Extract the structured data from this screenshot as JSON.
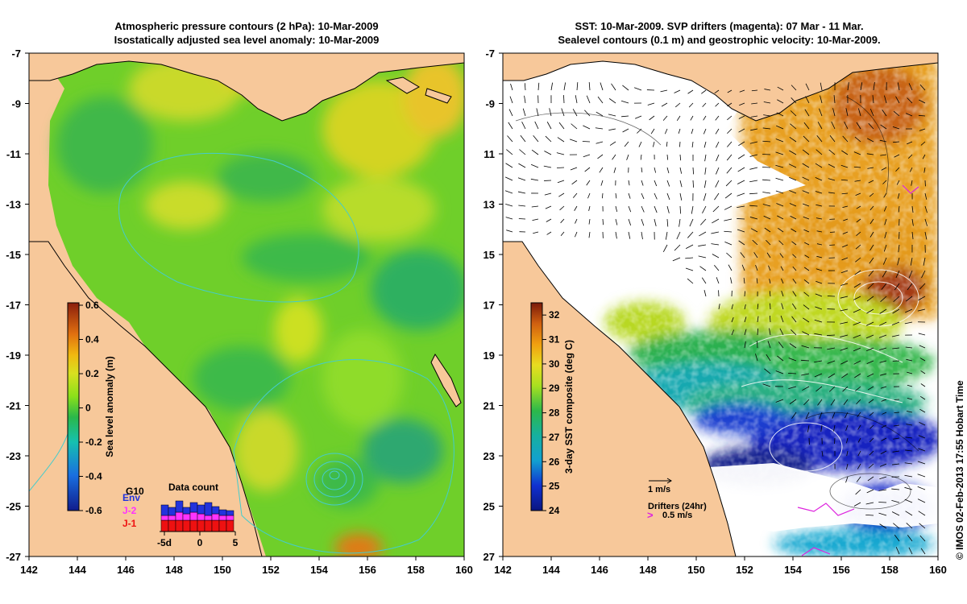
{
  "left_panel": {
    "title_line1": "Atmospheric pressure contours (2 hPa): 10-Mar-2009",
    "title_line2": "Isostatically adjusted sea level anomaly: 10-Mar-2009",
    "x_ticks": [
      "142",
      "144",
      "146",
      "148",
      "150",
      "152",
      "154",
      "156",
      "158",
      "160"
    ],
    "y_ticks": [
      "-7",
      "-9",
      "-11",
      "-13",
      "-15",
      "-17",
      "-19",
      "-21",
      "-23",
      "-25",
      "-27"
    ],
    "colorbar": {
      "label": "Sea level anomaly (m)",
      "ticks": [
        "0.6",
        "0.4",
        "0.2",
        "0",
        "-0.2",
        "-0.4",
        "-0.6"
      ],
      "range": [
        -0.6,
        0.6
      ]
    },
    "inset": {
      "title": "Data count",
      "missions": [
        "Env",
        "J-2",
        "J-1"
      ],
      "mission_colors": [
        "#2233dd",
        "#ff33ff",
        "#ee1111"
      ],
      "ticks": [
        "-5d",
        "0",
        "5"
      ],
      "extra_label": "G10"
    }
  },
  "right_panel": {
    "title_line1": "SST: 10-Mar-2009. SVP drifters (magenta): 07 Mar - 11 Mar.",
    "title_line2": "Sealevel contours (0.1 m) and geostrophic velocity: 10-Mar-2009.",
    "x_ticks": [
      "142",
      "144",
      "146",
      "148",
      "150",
      "152",
      "154",
      "156",
      "158",
      "160"
    ],
    "y_ticks": [
      "-7",
      "-9",
      "-11",
      "-13",
      "-15",
      "-17",
      "-19",
      "-21",
      "-23",
      "-25",
      "-27"
    ],
    "colorbar": {
      "label": "3-day SST composite (deg C)",
      "ticks": [
        "32",
        "31",
        "30",
        "29",
        "28",
        "27",
        "26",
        "25",
        "24"
      ],
      "range": [
        24,
        32.5
      ]
    },
    "legend": {
      "velocity_label": "1 m/s",
      "drifters_label": "Drifters (24hr)",
      "drifter_speed_label": "0.5 m/s",
      "drifter_marker": ">"
    }
  },
  "credit": "© IMOS 02-Feb-2013 17:55 Hobart Time",
  "colors": {
    "land": "#f7c89a",
    "cloud": "#ffffff",
    "pressure_contour": "#44cccc",
    "coast": "#000000",
    "drifter": "#dd22dd"
  }
}
